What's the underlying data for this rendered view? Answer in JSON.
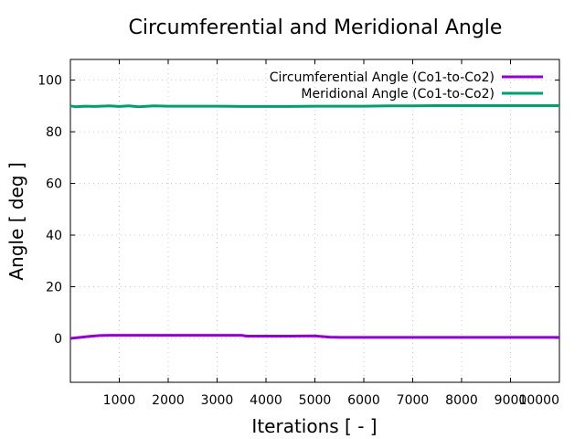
{
  "chart_data": {
    "type": "line",
    "title": "Circumferential and Meridional Angle",
    "xlabel": "Iterations [ - ]",
    "ylabel": "Angle [ deg ]",
    "xlim": [
      0,
      10000
    ],
    "ylim": [
      -17,
      108
    ],
    "xticks": [
      1000,
      2000,
      3000,
      4000,
      5000,
      6000,
      7000,
      8000,
      9000,
      10000
    ],
    "yticks": [
      0,
      20,
      40,
      60,
      80,
      100
    ],
    "grid": true,
    "legend_position": "top-right",
    "series": [
      {
        "name": "Circumferential Angle (Co1-to-Co2)",
        "color": "#9400d3",
        "x": [
          0,
          200,
          400,
          600,
          800,
          1000,
          1500,
          2000,
          2500,
          3000,
          3500,
          3600,
          4000,
          4500,
          5000,
          5100,
          5300,
          5500,
          6000,
          7000,
          8000,
          9000,
          10000
        ],
        "y": [
          0.0,
          0.4,
          0.8,
          1.1,
          1.2,
          1.2,
          1.2,
          1.2,
          1.2,
          1.2,
          1.2,
          0.9,
          0.9,
          0.9,
          1.0,
          0.8,
          0.5,
          0.4,
          0.4,
          0.4,
          0.4,
          0.4,
          0.4
        ]
      },
      {
        "name": "Meridional Angle (Co1-to-Co2)",
        "color": "#009e73",
        "x": [
          0,
          100,
          300,
          500,
          800,
          1000,
          1200,
          1400,
          1700,
          2000,
          2500,
          3000,
          3500,
          4000,
          4500,
          5000,
          5500,
          6000,
          6500,
          7000,
          7500,
          8000,
          9000,
          10000
        ],
        "y": [
          90.0,
          89.7,
          89.9,
          89.8,
          90.0,
          89.8,
          90.0,
          89.7,
          90.0,
          89.9,
          89.9,
          89.9,
          89.8,
          89.8,
          89.8,
          89.9,
          89.9,
          89.9,
          90.0,
          90.0,
          90.1,
          90.1,
          90.1,
          90.1
        ]
      }
    ]
  }
}
